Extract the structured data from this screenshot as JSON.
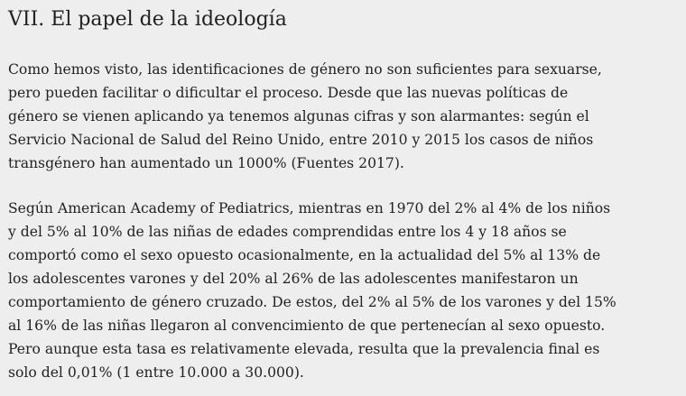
{
  "heading": "VII. El papel de la ideología",
  "paragraphs": [
    [
      "Como hemos visto, las identificaciones de género no son suficientes para sexuarse,",
      "pero pueden facilitar o dificultar el proceso. Desde que las nuevas políticas de",
      "género se vienen aplicando ya tenemos algunas cifras y son alarmantes: según el",
      "Servicio Nacional de Salud del Reino Unido, entre 2010 y 2015 los casos de niños",
      "transgénero han aumentado un 1000% (Fuentes 2017)."
    ],
    [
      "Según American Academy of Pediatrics, mientras en 1970 del 2% al 4% de los niños",
      "y del 5% al 10% de las niñas de edades comprendidas entre los 4 y 18 años se",
      "comportó como el sexo opuesto ocasionalmente, en la actualidad del 5% al 13% de",
      "los adolescentes varones y del 20% al 26% de las adolescentes manifestaron un",
      "comportamiento de género cruzado. De estos, del 2% al 5% de los varones y del 15%",
      "al 16% de las niñas llegaron al convencimiento de que pertenecían al sexo opuesto.",
      "Pero aunque esta tasa es relativamente elevada, resulta que la prevalencia final es",
      "solo del 0,01% (1 entre 10.000 a 30.000)."
    ]
  ]
}
